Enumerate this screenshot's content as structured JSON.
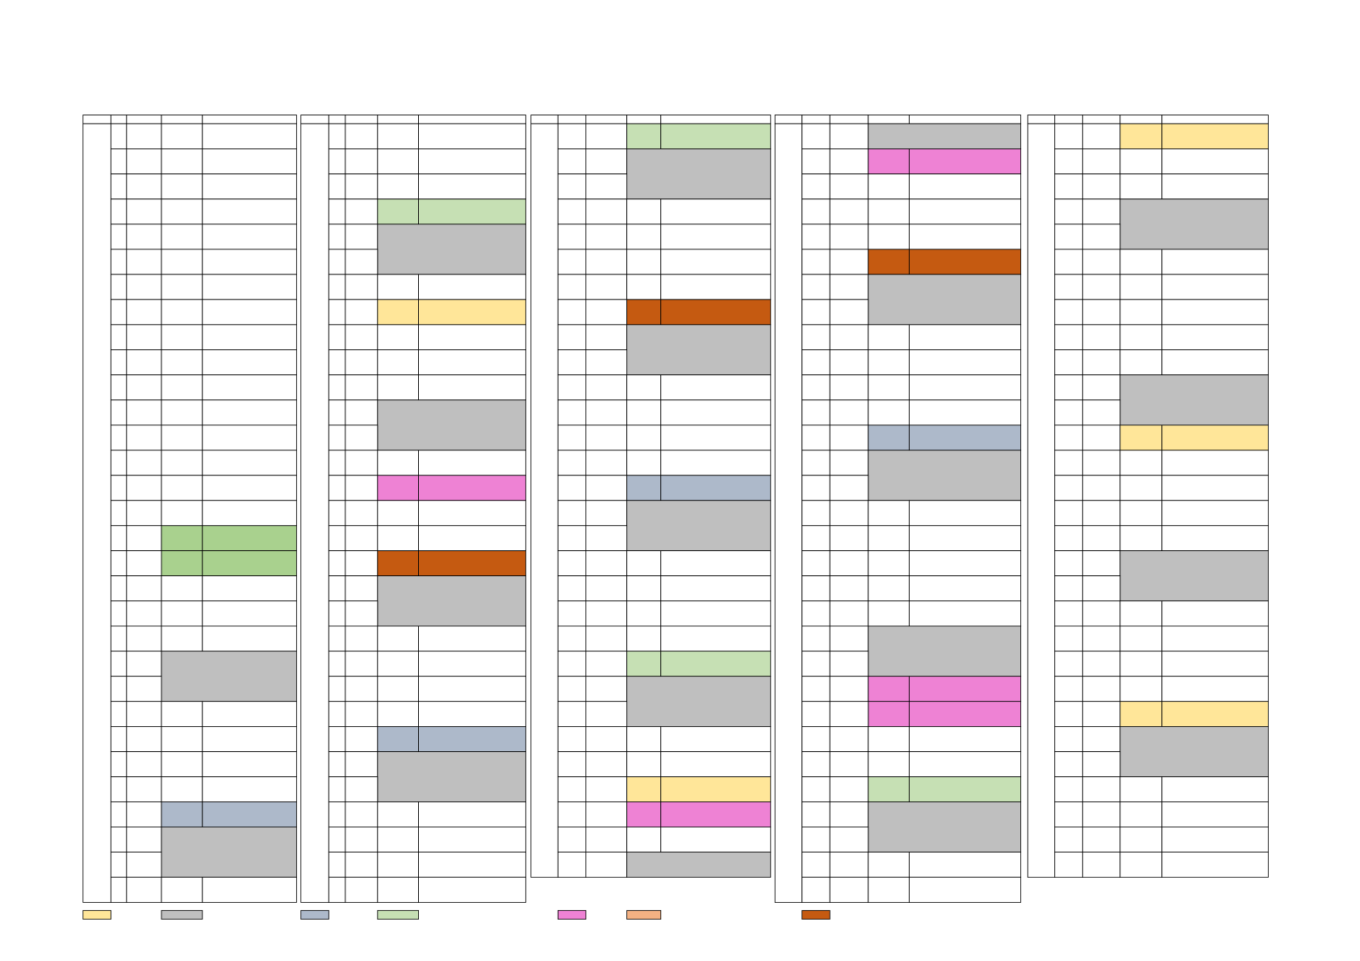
{
  "fills": {
    "yellow": "#ffe699",
    "gray": "#bfbfbf",
    "blue": "#adb9ca",
    "lightgreen": "#c6e0b4",
    "green": "#a9d18e",
    "pink": "#ee82d4",
    "salmon": "#f4b183",
    "orange": "#c55a11"
  },
  "merged_fill": "gray",
  "tables": [
    {
      "rows": 31,
      "blocks": [
        [
          16,
          2,
          "green"
        ],
        [
          21,
          2,
          "gray"
        ],
        [
          27,
          1,
          "blue"
        ],
        [
          28,
          2,
          "gray"
        ]
      ]
    },
    {
      "rows": 31,
      "blocks": [
        [
          3,
          1,
          "lightgreen"
        ],
        [
          4,
          2,
          "gray"
        ],
        [
          7,
          1,
          "yellow"
        ],
        [
          11,
          2,
          "gray"
        ],
        [
          14,
          1,
          "pink"
        ],
        [
          17,
          1,
          "orange"
        ],
        [
          18,
          2,
          "gray"
        ],
        [
          24,
          1,
          "blue"
        ],
        [
          25,
          2,
          "gray"
        ]
      ]
    },
    {
      "rows": 30,
      "blocks": [
        [
          0,
          1,
          "lightgreen"
        ],
        [
          1,
          2,
          "gray"
        ],
        [
          7,
          1,
          "orange"
        ],
        [
          8,
          2,
          "gray"
        ],
        [
          14,
          1,
          "blue"
        ],
        [
          15,
          2,
          "gray"
        ],
        [
          21,
          1,
          "lightgreen"
        ],
        [
          22,
          2,
          "gray"
        ],
        [
          26,
          1,
          "yellow"
        ],
        [
          27,
          1,
          "pink"
        ],
        [
          29,
          1,
          "gray"
        ]
      ]
    },
    {
      "rows": 31,
      "blocks": [
        [
          0,
          1,
          "gray"
        ],
        [
          1,
          1,
          "pink"
        ],
        [
          5,
          1,
          "orange"
        ],
        [
          6,
          2,
          "gray"
        ],
        [
          12,
          1,
          "blue"
        ],
        [
          13,
          2,
          "gray"
        ],
        [
          20,
          2,
          "gray"
        ],
        [
          22,
          2,
          "pink"
        ],
        [
          26,
          1,
          "lightgreen"
        ],
        [
          27,
          2,
          "gray"
        ]
      ]
    },
    {
      "rows": 30,
      "blocks": [
        [
          0,
          1,
          "yellow"
        ],
        [
          3,
          2,
          "gray"
        ],
        [
          10,
          2,
          "gray"
        ],
        [
          12,
          1,
          "yellow"
        ],
        [
          17,
          2,
          "gray"
        ],
        [
          23,
          1,
          "yellow"
        ],
        [
          24,
          2,
          "gray"
        ]
      ]
    }
  ],
  "legend": [
    "yellow",
    "gray",
    "blue",
    "lightgreen",
    "pink",
    "salmon",
    "orange"
  ]
}
